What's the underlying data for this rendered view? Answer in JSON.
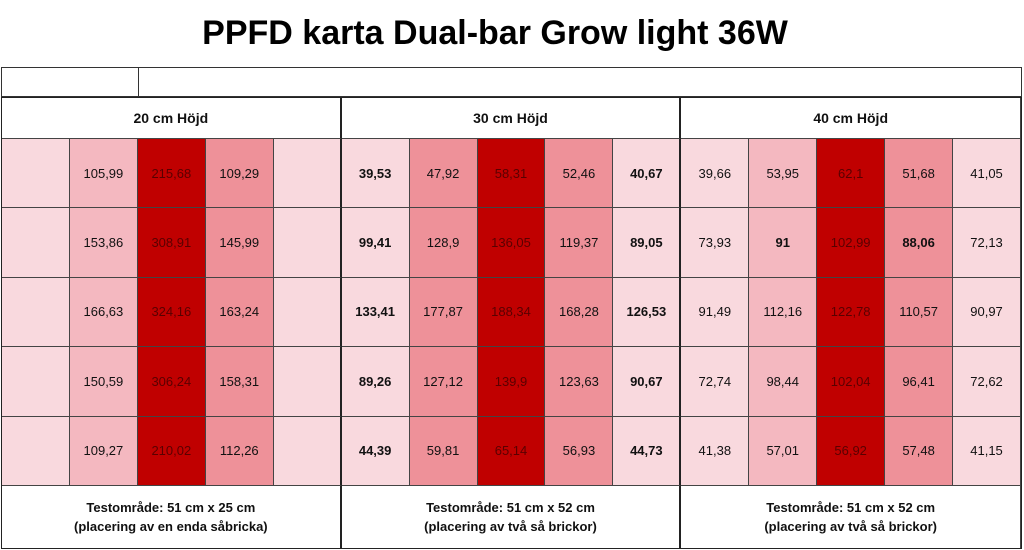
{
  "title": "PPFD karta Dual-bar Grow light 36W",
  "colors": {
    "light": "#f9d9de",
    "medium_light": "#f4b8c0",
    "medium": "#ee9199",
    "dark": "#c00000"
  },
  "sections": [
    {
      "header": "20 cm  Höjd",
      "footer_line1": "Testområde: 51 cm x 25 cm",
      "footer_line2": "(placering av en enda såbricka)",
      "shades": [
        "light",
        "medium_light",
        "dark",
        "medium",
        "light"
      ],
      "rows": [
        [
          "",
          "105,99",
          "215,68",
          "109,29",
          ""
        ],
        [
          "",
          "153,86",
          "308,91",
          "145,99",
          ""
        ],
        [
          "",
          "166,63",
          "324,16",
          "163,24",
          ""
        ],
        [
          "",
          "150,59",
          "306,24",
          "158,31",
          ""
        ],
        [
          "",
          "109,27",
          "210,02",
          "112,26",
          ""
        ]
      ],
      "bold": []
    },
    {
      "header": "30 cm Höjd",
      "footer_line1": "Testområde: 51 cm x 52 cm",
      "footer_line2": "(placering av två så brickor)",
      "shades": [
        "light",
        "medium",
        "dark",
        "medium",
        "light"
      ],
      "rows": [
        [
          "39,53",
          "47,92",
          "58,31",
          "52,46",
          "40,67"
        ],
        [
          "99,41",
          "128,9",
          "136,05",
          "119,37",
          "89,05"
        ],
        [
          "133,41",
          "177,87",
          "188,34",
          "168,28",
          "126,53"
        ],
        [
          "89,26",
          "127,12",
          "139,9",
          "123,63",
          "90,67"
        ],
        [
          "44,39",
          "59,81",
          "65,14",
          "56,93",
          "44,73"
        ]
      ],
      "bold": [
        "0-0",
        "0-4",
        "1-0",
        "1-4",
        "2-0",
        "2-4",
        "3-0",
        "3-4",
        "4-0",
        "4-4"
      ]
    },
    {
      "header": "40 cm Höjd",
      "footer_line1": "Testområde: 51 cm x 52 cm",
      "footer_line2": "(placering av två så brickor)",
      "shades": [
        "light",
        "medium_light",
        "dark",
        "medium",
        "light"
      ],
      "rows": [
        [
          "39,66",
          "53,95",
          "62,1",
          "51,68",
          "41,05"
        ],
        [
          "73,93",
          "91",
          "102,99",
          "88,06",
          "72,13"
        ],
        [
          "91,49",
          "112,16",
          "122,78",
          "110,57",
          "90,97"
        ],
        [
          "72,74",
          "98,44",
          "102,04",
          "96,41",
          "72,62"
        ],
        [
          "41,38",
          "57,01",
          "56,92",
          "57,48",
          "41,15"
        ]
      ],
      "bold": [
        "1-1",
        "1-3"
      ]
    }
  ]
}
